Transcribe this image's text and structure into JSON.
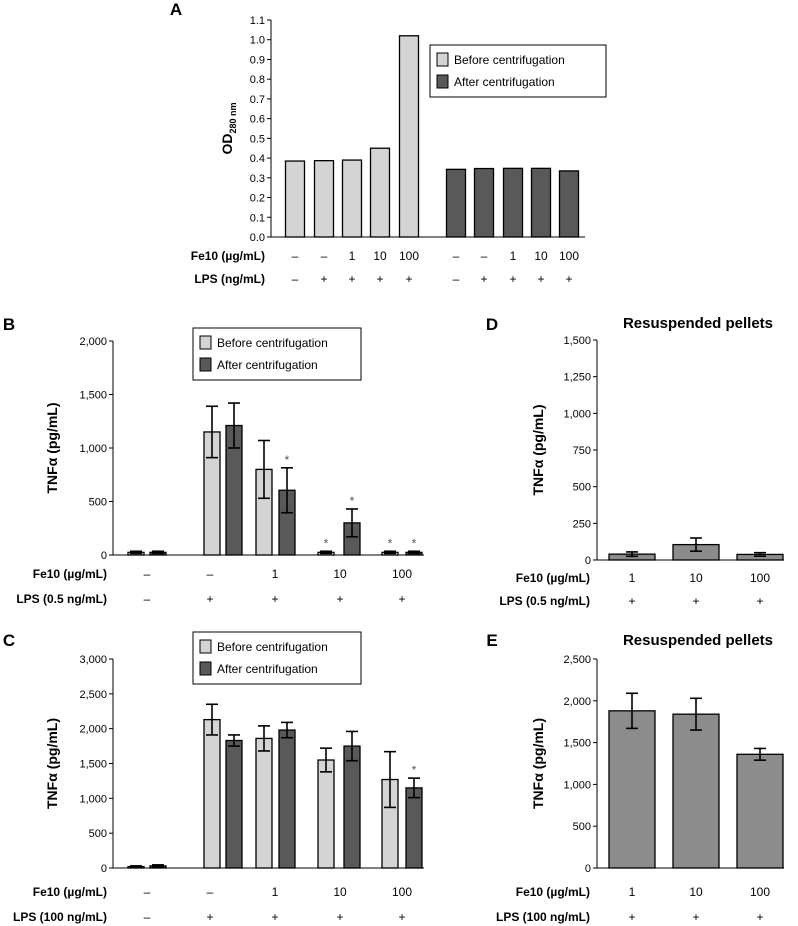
{
  "colors": {
    "before": "#d4d4d4",
    "after": "#595959",
    "pellet": "#8c8c8c",
    "stroke": "#000000"
  },
  "chart_data": [
    {
      "id": "A",
      "letter": "A",
      "type": "bar",
      "ylabel_main": "OD",
      "ylabel_sub": "280 nm",
      "ylim": [
        0,
        1.1
      ],
      "yticks": [
        "0.0",
        "0.1",
        "0.2",
        "0.3",
        "0.4",
        "0.5",
        "0.6",
        "0.7",
        "0.8",
        "0.9",
        "1.0",
        "1.1"
      ],
      "ytick_values": [
        0,
        0.1,
        0.2,
        0.3,
        0.4,
        0.5,
        0.6,
        0.7,
        0.8,
        0.9,
        1.0,
        1.1
      ],
      "legend": [
        "Before centrifugation",
        "After centrifugation"
      ],
      "bars": [
        {
          "series": "before",
          "value": 0.385
        },
        {
          "series": "before",
          "value": 0.387
        },
        {
          "series": "before",
          "value": 0.39
        },
        {
          "series": "before",
          "value": 0.45
        },
        {
          "series": "before",
          "value": 1.02
        },
        {
          "series": "after",
          "value": 0.343
        },
        {
          "series": "after",
          "value": 0.347
        },
        {
          "series": "after",
          "value": 0.348
        },
        {
          "series": "after",
          "value": 0.348
        },
        {
          "series": "after",
          "value": 0.335
        }
      ],
      "conditions": [
        {
          "label": "Fe10 (µg/mL)",
          "values": [
            "–",
            "–",
            "1",
            "10",
            "100",
            "–",
            "–",
            "1",
            "10",
            "100"
          ]
        },
        {
          "label": "LPS (ng/mL)",
          "values": [
            "–",
            "+",
            "+",
            "+",
            "+",
            "–",
            "+",
            "+",
            "+",
            "+"
          ]
        }
      ]
    },
    {
      "id": "B",
      "letter": "B",
      "type": "bar",
      "ylabel": "TNFα (pg/mL)",
      "ylim": [
        0,
        2000
      ],
      "yticks": [
        "0",
        "500",
        "1,000",
        "1,500",
        "2,000"
      ],
      "ytick_values": [
        0,
        500,
        1000,
        1500,
        2000
      ],
      "legend": [
        "Before centrifugation",
        "After centrifugation"
      ],
      "bars": [
        {
          "series": "before",
          "value": 25,
          "err": 10,
          "sig": ""
        },
        {
          "series": "after",
          "value": 25,
          "err": 10,
          "sig": ""
        },
        {
          "series": "before",
          "value": 1150,
          "err": 240,
          "sig": ""
        },
        {
          "series": "after",
          "value": 1210,
          "err": 210,
          "sig": ""
        },
        {
          "series": "before",
          "value": 800,
          "err": 270,
          "sig": ""
        },
        {
          "series": "after",
          "value": 605,
          "err": 210,
          "sig": "*"
        },
        {
          "series": "before",
          "value": 25,
          "err": 10,
          "sig": "*"
        },
        {
          "series": "after",
          "value": 300,
          "err": 130,
          "sig": "*"
        },
        {
          "series": "before",
          "value": 25,
          "err": 10,
          "sig": "*"
        },
        {
          "series": "after",
          "value": 25,
          "err": 10,
          "sig": "*"
        }
      ],
      "conditions": [
        {
          "label": "Fe10 (µg/mL)",
          "values": [
            "–",
            "–",
            "1",
            "10",
            "100"
          ]
        },
        {
          "label": "LPS (0.5 ng/mL)",
          "values": [
            "–",
            "+",
            "+",
            "+",
            "+"
          ]
        }
      ]
    },
    {
      "id": "C",
      "letter": "C",
      "type": "bar",
      "ylabel": "TNFα (pg/mL)",
      "ylim": [
        0,
        3000
      ],
      "yticks": [
        "0",
        "500",
        "1,000",
        "1,500",
        "2,000",
        "2,500",
        "3,000"
      ],
      "ytick_values": [
        0,
        500,
        1000,
        1500,
        2000,
        2500,
        3000
      ],
      "legend": [
        "Before centrifugation",
        "After centrifugation"
      ],
      "bars": [
        {
          "series": "before",
          "value": 20,
          "err": 10,
          "sig": ""
        },
        {
          "series": "after",
          "value": 30,
          "err": 15,
          "sig": ""
        },
        {
          "series": "before",
          "value": 2130,
          "err": 220,
          "sig": ""
        },
        {
          "series": "after",
          "value": 1830,
          "err": 80,
          "sig": ""
        },
        {
          "series": "before",
          "value": 1860,
          "err": 180,
          "sig": ""
        },
        {
          "series": "after",
          "value": 1980,
          "err": 110,
          "sig": ""
        },
        {
          "series": "before",
          "value": 1550,
          "err": 170,
          "sig": ""
        },
        {
          "series": "after",
          "value": 1750,
          "err": 210,
          "sig": ""
        },
        {
          "series": "before",
          "value": 1270,
          "err": 400,
          "sig": ""
        },
        {
          "series": "after",
          "value": 1150,
          "err": 140,
          "sig": "*"
        }
      ],
      "conditions": [
        {
          "label": "Fe10 (µg/mL)",
          "values": [
            "–",
            "–",
            "1",
            "10",
            "100"
          ]
        },
        {
          "label": "LPS (100 ng/mL)",
          "values": [
            "–",
            "+",
            "+",
            "+",
            "+"
          ]
        }
      ]
    },
    {
      "id": "D",
      "letter": "D",
      "type": "bar",
      "title": "Resuspended pellets",
      "ylabel": "TNFα (pg/mL)",
      "ylim": [
        0,
        1500
      ],
      "yticks": [
        "0",
        "250",
        "500",
        "750",
        "1,000",
        "1,250",
        "1,500"
      ],
      "ytick_values": [
        0,
        250,
        500,
        750,
        1000,
        1250,
        1500
      ],
      "bars": [
        {
          "series": "pellet",
          "value": 40,
          "err": 15,
          "sig": ""
        },
        {
          "series": "pellet",
          "value": 105,
          "err": 45,
          "sig": ""
        },
        {
          "series": "pellet",
          "value": 38,
          "err": 12,
          "sig": ""
        }
      ],
      "conditions": [
        {
          "label": "Fe10 (µg/mL)",
          "values": [
            "1",
            "10",
            "100"
          ]
        },
        {
          "label": "LPS (0.5 ng/mL)",
          "values": [
            "+",
            "+",
            "+"
          ]
        }
      ]
    },
    {
      "id": "E",
      "letter": "E",
      "type": "bar",
      "title": "Resuspended pellets",
      "ylabel": "TNFα (pg/mL)",
      "ylim": [
        0,
        2500
      ],
      "yticks": [
        "0",
        "500",
        "1,000",
        "1,500",
        "2,000",
        "2,500"
      ],
      "ytick_values": [
        0,
        500,
        1000,
        1500,
        2000,
        2500
      ],
      "bars": [
        {
          "series": "pellet",
          "value": 1880,
          "err": 210,
          "sig": ""
        },
        {
          "series": "pellet",
          "value": 1840,
          "err": 190,
          "sig": ""
        },
        {
          "series": "pellet",
          "value": 1360,
          "err": 70,
          "sig": ""
        }
      ],
      "conditions": [
        {
          "label": "Fe10 (µg/mL)",
          "values": [
            "1",
            "10",
            "100"
          ]
        },
        {
          "label": "LPS (100 ng/mL)",
          "values": [
            "+",
            "+",
            "+"
          ]
        }
      ]
    }
  ]
}
